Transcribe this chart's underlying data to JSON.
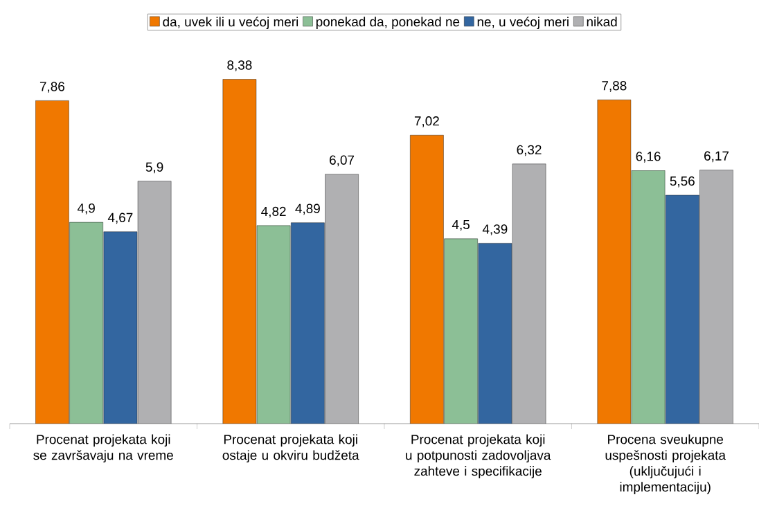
{
  "chart_data": {
    "type": "bar",
    "categories": [
      "Procenat projekata koji se završavaju na vreme",
      "Procenat projekata koji ostaje u okviru budžeta",
      "Procenat projekata koji u potpunosti zadovoljava zahteve i specifikacije",
      "Procena sveukupne uspešnosti projekata (uključujući i implementaciju)"
    ],
    "series": [
      {
        "name": "da, uvek ili u većoj meri",
        "color": "#f07800",
        "values": [
          7.86,
          8.38,
          7.02,
          7.88
        ],
        "value_labels": [
          "7,86",
          "8,38",
          "7,02",
          "7,88"
        ]
      },
      {
        "name": "ponekad da, ponekad ne",
        "color": "#8cbf96",
        "values": [
          4.9,
          4.82,
          4.5,
          6.16
        ],
        "value_labels": [
          "4,9",
          "4,82",
          "4,5",
          "6,16"
        ]
      },
      {
        "name": "ne, u većoj meri",
        "color": "#3366a0",
        "values": [
          4.67,
          4.89,
          4.39,
          5.56
        ],
        "value_labels": [
          "4,67",
          "4,89",
          "4,39",
          "5,56"
        ]
      },
      {
        "name": "nikad",
        "color": "#b0b0b2",
        "values": [
          5.9,
          6.07,
          6.32,
          6.17
        ],
        "value_labels": [
          "5,9",
          "6,07",
          "6,32",
          "6,17"
        ]
      }
    ],
    "legend": "top",
    "grid": false
  }
}
